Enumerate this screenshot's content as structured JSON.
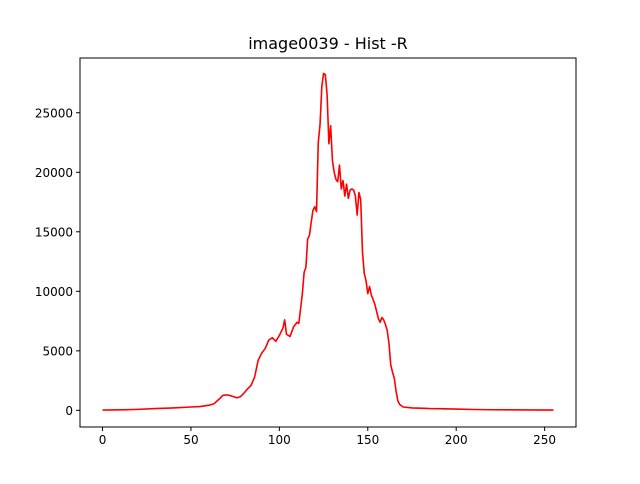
{
  "chart_data": {
    "type": "line",
    "title": "image0039 - Hist -R",
    "xlabel": "",
    "ylabel": "",
    "xlim": [
      -12.75,
      267.75
    ],
    "ylim": [
      -1400,
      29600
    ],
    "x_ticks": [
      0,
      50,
      100,
      150,
      200,
      250
    ],
    "x_tick_labels": [
      "0",
      "50",
      "100",
      "150",
      "200",
      "250"
    ],
    "y_ticks": [
      0,
      5000,
      10000,
      15000,
      20000,
      25000
    ],
    "y_tick_labels": [
      "0",
      "5000",
      "10000",
      "15000",
      "20000",
      "25000"
    ],
    "grid": false,
    "series": [
      {
        "color": "#ff0000",
        "points": [
          [
            0,
            20
          ],
          [
            10,
            40
          ],
          [
            20,
            80
          ],
          [
            30,
            150
          ],
          [
            40,
            200
          ],
          [
            50,
            280
          ],
          [
            55,
            320
          ],
          [
            60,
            420
          ],
          [
            63,
            550
          ],
          [
            66,
            950
          ],
          [
            68,
            1250
          ],
          [
            70,
            1300
          ],
          [
            72,
            1250
          ],
          [
            74,
            1150
          ],
          [
            76,
            1050
          ],
          [
            78,
            1150
          ],
          [
            80,
            1450
          ],
          [
            82,
            1800
          ],
          [
            84,
            2100
          ],
          [
            86,
            2800
          ],
          [
            88,
            4200
          ],
          [
            90,
            4800
          ],
          [
            92,
            5200
          ],
          [
            94,
            5900
          ],
          [
            96,
            6100
          ],
          [
            98,
            5800
          ],
          [
            100,
            6300
          ],
          [
            102,
            6900
          ],
          [
            103,
            7600
          ],
          [
            104,
            6400
          ],
          [
            106,
            6200
          ],
          [
            108,
            7000
          ],
          [
            110,
            7400
          ],
          [
            111,
            7300
          ],
          [
            113,
            9800
          ],
          [
            114,
            11600
          ],
          [
            115,
            12000
          ],
          [
            116,
            14400
          ],
          [
            117,
            14700
          ],
          [
            118,
            15800
          ],
          [
            119,
            16800
          ],
          [
            120,
            17100
          ],
          [
            121,
            16700
          ],
          [
            122,
            22500
          ],
          [
            123,
            24000
          ],
          [
            124,
            27200
          ],
          [
            125,
            28300
          ],
          [
            126,
            28200
          ],
          [
            127,
            26500
          ],
          [
            128,
            22400
          ],
          [
            129,
            23900
          ],
          [
            130,
            21000
          ],
          [
            131,
            20000
          ],
          [
            132,
            19400
          ],
          [
            133,
            19200
          ],
          [
            134,
            20600
          ],
          [
            135,
            18600
          ],
          [
            136,
            19300
          ],
          [
            137,
            18000
          ],
          [
            138,
            19000
          ],
          [
            139,
            17800
          ],
          [
            140,
            18500
          ],
          [
            141,
            18600
          ],
          [
            142,
            18500
          ],
          [
            143,
            18000
          ],
          [
            144,
            16400
          ],
          [
            145,
            18300
          ],
          [
            146,
            17700
          ],
          [
            147,
            13300
          ],
          [
            148,
            11500
          ],
          [
            149,
            10900
          ],
          [
            150,
            9800
          ],
          [
            151,
            10400
          ],
          [
            152,
            9700
          ],
          [
            153,
            9300
          ],
          [
            154,
            8900
          ],
          [
            155,
            8300
          ],
          [
            156,
            7700
          ],
          [
            157,
            7400
          ],
          [
            158,
            7800
          ],
          [
            159,
            7600
          ],
          [
            160,
            7200
          ],
          [
            161,
            6700
          ],
          [
            162,
            5600
          ],
          [
            163,
            3800
          ],
          [
            164,
            3200
          ],
          [
            165,
            2700
          ],
          [
            166,
            1600
          ],
          [
            167,
            800
          ],
          [
            168,
            500
          ],
          [
            170,
            280
          ],
          [
            175,
            200
          ],
          [
            180,
            180
          ],
          [
            185,
            150
          ],
          [
            190,
            140
          ],
          [
            200,
            110
          ],
          [
            210,
            70
          ],
          [
            220,
            50
          ],
          [
            230,
            40
          ],
          [
            240,
            30
          ],
          [
            255,
            20
          ]
        ]
      }
    ]
  }
}
